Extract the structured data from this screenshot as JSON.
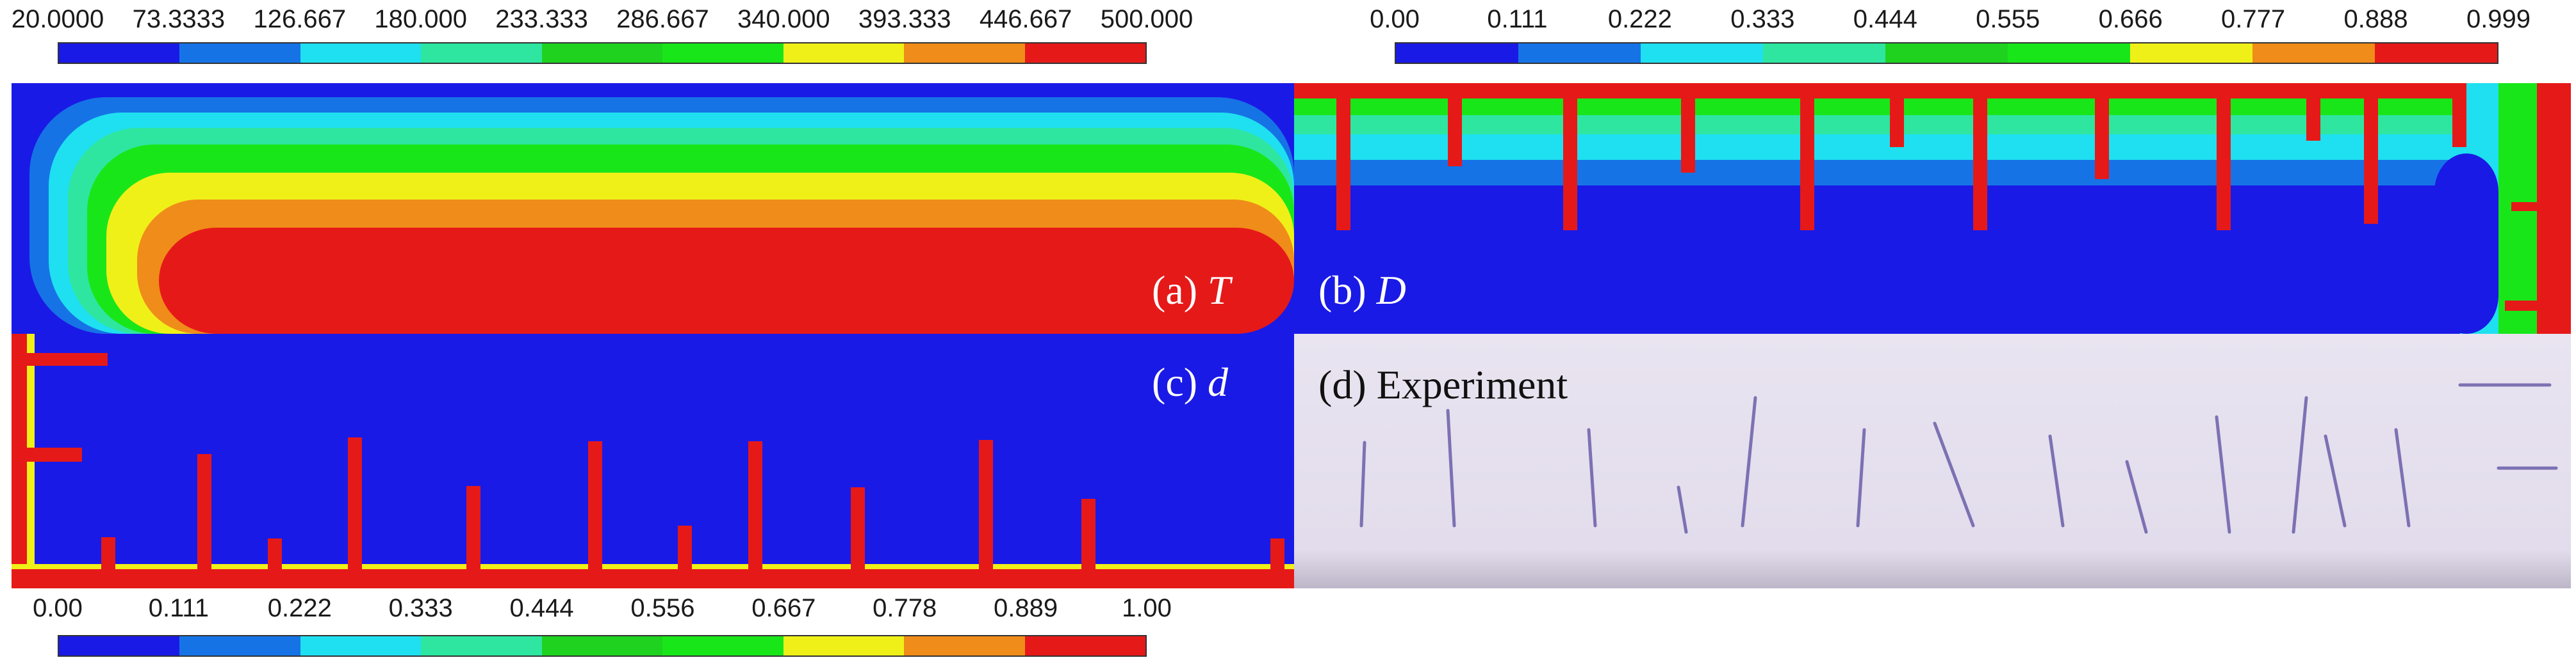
{
  "colorbar_palette": [
    "#1a1ae6",
    "#1673e6",
    "#1fe0f0",
    "#2ee6a0",
    "#1fd21f",
    "#19e619",
    "#f0f019",
    "#f08c19",
    "#e61919"
  ],
  "colorbar_top_left": {
    "labels": [
      "20.0000",
      "73.3333",
      "126.667",
      "180.000",
      "233.333",
      "286.667",
      "340.000",
      "393.333",
      "446.667",
      "500.000"
    ]
  },
  "colorbar_top_right": {
    "labels": [
      "0.00",
      "0.111",
      "0.222",
      "0.333",
      "0.444",
      "0.555",
      "0.666",
      "0.777",
      "0.888",
      "0.999"
    ]
  },
  "colorbar_bottom_left": {
    "labels": [
      "0.00",
      "0.111",
      "0.222",
      "0.333",
      "0.444",
      "0.556",
      "0.667",
      "0.778",
      "0.889",
      "1.00"
    ]
  },
  "panels": {
    "a": {
      "prefix": "(a) ",
      "variable": "T"
    },
    "b": {
      "prefix": "(b) ",
      "variable": "D"
    },
    "c": {
      "prefix": "(c) ",
      "variable": "d"
    },
    "d": {
      "label": "(d) Experiment"
    }
  },
  "colors": {
    "blue": "#1a1ae6",
    "red": "#e61919",
    "experiment_bg": "#e6e0ee",
    "crack_ink": "#6a5ea8"
  }
}
